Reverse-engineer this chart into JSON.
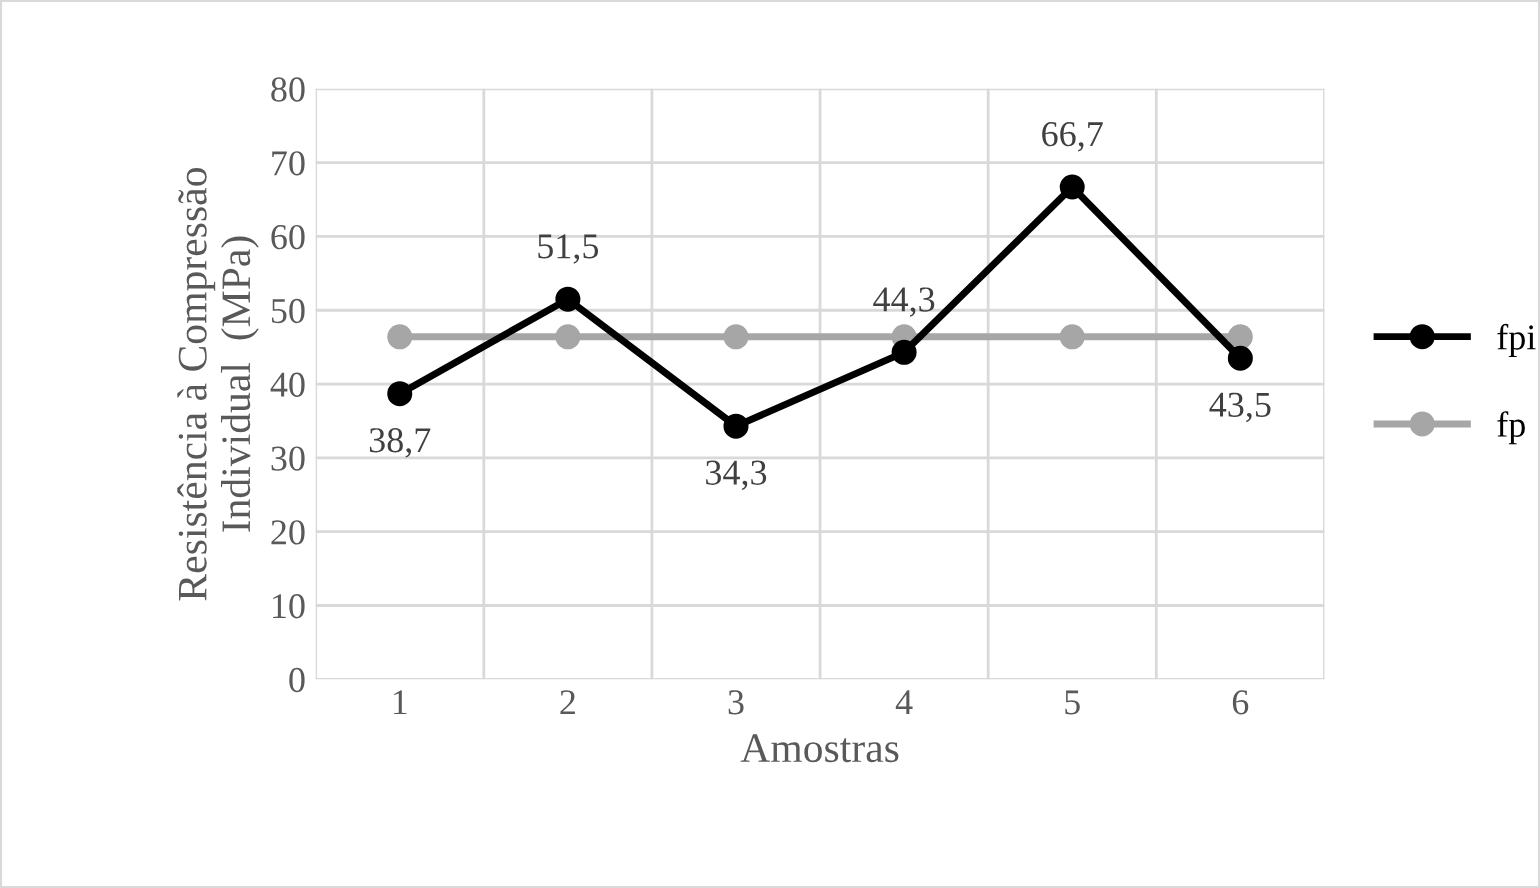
{
  "chart_data": {
    "type": "line",
    "xlabel": "Amostras",
    "ylabel": "Resistência à Compressão\nIndividual  (MPa)",
    "categories": [
      "1",
      "2",
      "3",
      "4",
      "5",
      "6"
    ],
    "series": [
      {
        "name": "fpi",
        "color": "#000000",
        "values": [
          38.7,
          51.5,
          34.3,
          44.3,
          66.7,
          43.5
        ],
        "value_labels": [
          "38,7",
          "51,5",
          "34,3",
          "44,3",
          "66,7",
          "43,5"
        ]
      },
      {
        "name": "fp",
        "color": "#a6a6a6",
        "values": [
          46.4,
          46.4,
          46.4,
          46.4,
          46.4,
          46.4
        ]
      }
    ],
    "ylim": [
      0,
      80
    ],
    "yticks": [
      0,
      10,
      20,
      30,
      40,
      50,
      60,
      70,
      80
    ],
    "grid": true,
    "legend": "right",
    "marker": "circle",
    "line_style": "solid"
  }
}
